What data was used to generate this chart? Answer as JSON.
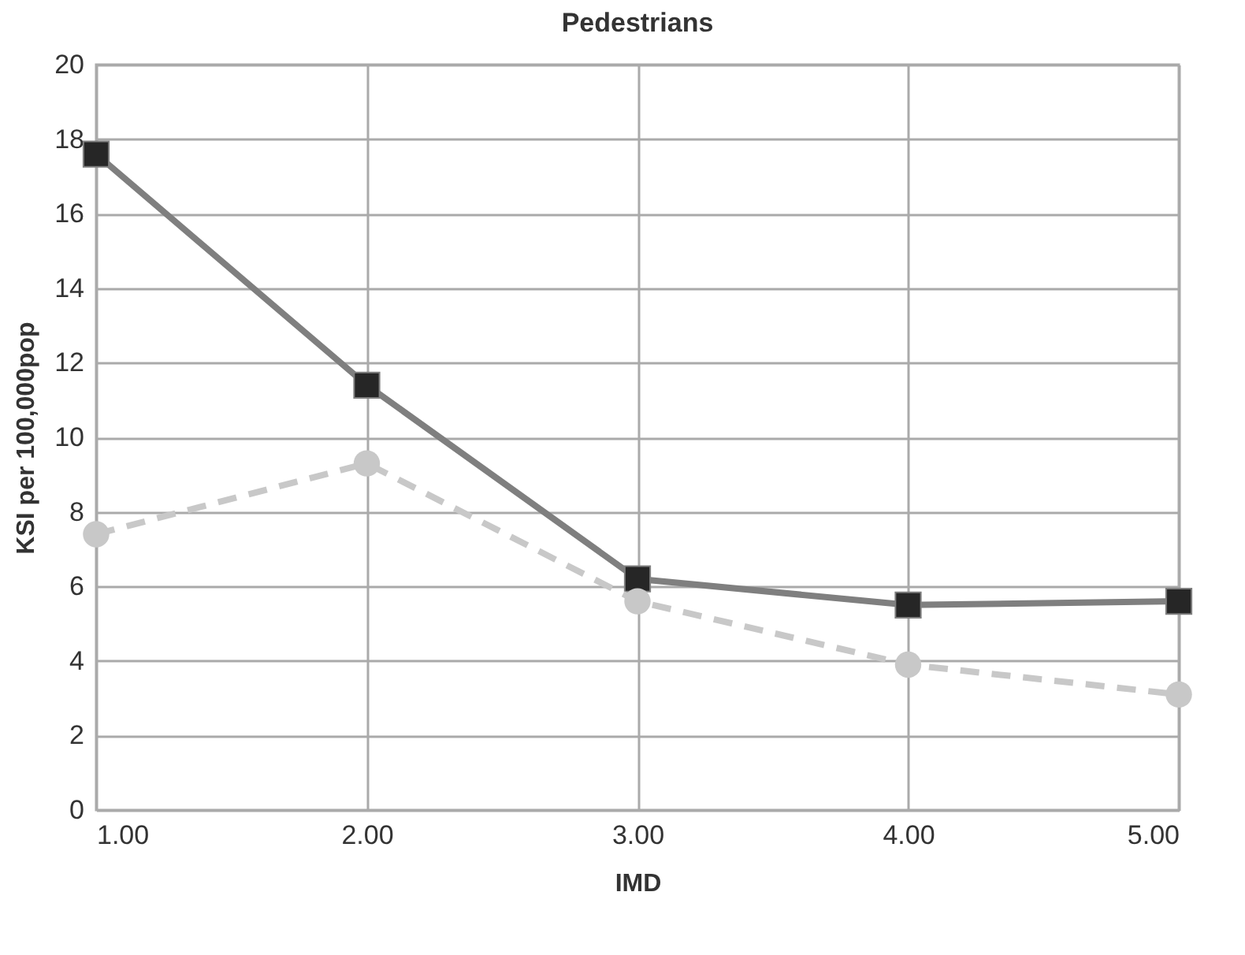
{
  "chart_data": {
    "type": "line",
    "title": "Pedestrians",
    "xlabel": "IMD",
    "ylabel": "KSI per 100,000pop",
    "x": [
      1,
      2,
      3,
      4,
      5
    ],
    "series": [
      {
        "color": "#7f7f7f",
        "marker": "square",
        "line_style": "solid",
        "values": [
          17.6,
          11.4,
          6.2,
          5.5,
          5.6
        ]
      },
      {
        "color": "#c8c8c8",
        "marker": "circle",
        "line_style": "dashed",
        "values": [
          7.4,
          9.3,
          5.6,
          3.9,
          3.1
        ]
      }
    ],
    "xlim": [
      1,
      5
    ],
    "xticks": [
      {
        "value": 1,
        "label": "1.00"
      },
      {
        "value": 2,
        "label": "2.00"
      },
      {
        "value": 3,
        "label": "3.00"
      },
      {
        "value": 4,
        "label": "4.00"
      },
      {
        "value": 5,
        "label": "5.00"
      }
    ],
    "ylim": [
      0,
      20
    ],
    "yticks": [
      0,
      2,
      4,
      6,
      8,
      10,
      12,
      14,
      16,
      18,
      20
    ],
    "grid": true
  }
}
